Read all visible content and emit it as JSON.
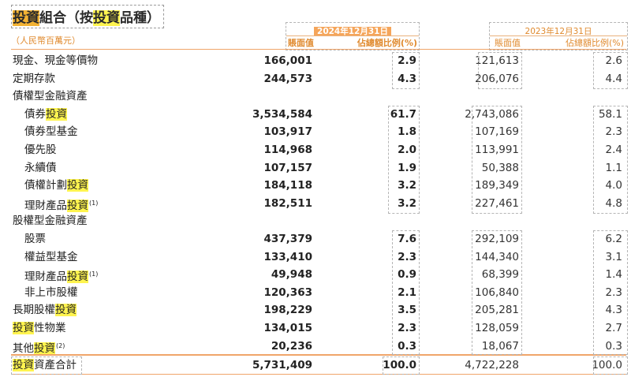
{
  "title": {
    "parts": [
      {
        "text": "投資",
        "style": "hl-orange"
      },
      {
        "text": "組合（按",
        "style": "plain"
      },
      {
        "text": "投資",
        "style": "hl"
      },
      {
        "text": "品種）",
        "style": "plain"
      }
    ]
  },
  "unit": "（人民幣百萬元）",
  "columns": {
    "y2024": {
      "date": "2024年12月31日",
      "value_header": "賬面值",
      "pct_header": "佔總額比例(%)"
    },
    "y2023": {
      "date": "2023年12月31日",
      "value_header": "賬面值",
      "pct_header": "佔總額比例(%)"
    }
  },
  "rows": [
    {
      "label": [
        {
          "text": "現金、現金等價物"
        }
      ],
      "indent": false,
      "v24": "166,001",
      "p24": "2.9",
      "v23": "121,613",
      "p23": "2.6"
    },
    {
      "label": [
        {
          "text": "定期存款"
        }
      ],
      "indent": false,
      "v24": "244,573",
      "p24": "4.3",
      "v23": "206,076",
      "p23": "4.4"
    },
    {
      "label": [
        {
          "text": "債權型金融資產"
        }
      ],
      "indent": false,
      "v24": "",
      "p24": "",
      "v23": "",
      "p23": ""
    },
    {
      "label": [
        {
          "text": "債券"
        },
        {
          "text": "投資",
          "hl": true
        }
      ],
      "indent": true,
      "v24": "3,534,584",
      "p24": "61.7",
      "v23": "2,743,086",
      "p23": "58.1"
    },
    {
      "label": [
        {
          "text": "債券型基金"
        }
      ],
      "indent": true,
      "v24": "103,917",
      "p24": "1.8",
      "v23": "107,169",
      "p23": "2.3"
    },
    {
      "label": [
        {
          "text": "優先股"
        }
      ],
      "indent": true,
      "v24": "114,968",
      "p24": "2.0",
      "v23": "113,991",
      "p23": "2.4"
    },
    {
      "label": [
        {
          "text": "永續債"
        }
      ],
      "indent": true,
      "v24": "107,157",
      "p24": "1.9",
      "v23": "50,388",
      "p23": "1.1"
    },
    {
      "label": [
        {
          "text": "債權計劃"
        },
        {
          "text": "投資",
          "hl": true
        }
      ],
      "indent": true,
      "v24": "184,118",
      "p24": "3.2",
      "v23": "189,349",
      "p23": "4.0"
    },
    {
      "label": [
        {
          "text": "理財產品"
        },
        {
          "text": "投資",
          "hl": true
        },
        {
          "text": "(1)",
          "sup": true
        }
      ],
      "indent": true,
      "v24": "182,511",
      "p24": "3.2",
      "v23": "227,461",
      "p23": "4.8"
    },
    {
      "label": [
        {
          "text": "股權型金融資產"
        }
      ],
      "indent": false,
      "v24": "",
      "p24": "",
      "v23": "",
      "p23": ""
    },
    {
      "label": [
        {
          "text": "股票"
        }
      ],
      "indent": true,
      "v24": "437,379",
      "p24": "7.6",
      "v23": "292,109",
      "p23": "6.2"
    },
    {
      "label": [
        {
          "text": "權益型基金"
        }
      ],
      "indent": true,
      "v24": "133,410",
      "p24": "2.3",
      "v23": "144,340",
      "p23": "3.1"
    },
    {
      "label": [
        {
          "text": "理財產品"
        },
        {
          "text": "投資",
          "hl": true
        },
        {
          "text": "(1)",
          "sup": true
        }
      ],
      "indent": true,
      "v24": "49,948",
      "p24": "0.9",
      "v23": "68,399",
      "p23": "1.4"
    },
    {
      "label": [
        {
          "text": "非上市股權"
        }
      ],
      "indent": true,
      "v24": "120,363",
      "p24": "2.1",
      "v23": "106,840",
      "p23": "2.3"
    },
    {
      "label": [
        {
          "text": "長期股權"
        },
        {
          "text": "投資",
          "hl": true
        }
      ],
      "indent": false,
      "v24": "198,229",
      "p24": "3.5",
      "v23": "205,281",
      "p23": "4.3"
    },
    {
      "label": [
        {
          "text": "投資",
          "hl": true
        },
        {
          "text": "性物業"
        }
      ],
      "indent": false,
      "v24": "134,015",
      "p24": "2.3",
      "v23": "128,059",
      "p23": "2.7"
    },
    {
      "label": [
        {
          "text": "其他"
        },
        {
          "text": "投資",
          "hl": true
        },
        {
          "text": "(2)",
          "sup": true
        }
      ],
      "indent": false,
      "v24": "20,236",
      "p24": "0.3",
      "v23": "18,067",
      "p23": "0.3"
    }
  ],
  "total": {
    "label": [
      {
        "text": "投資",
        "hl": true
      },
      {
        "text": "資產合計"
      }
    ],
    "v24": "5,731,409",
    "p24": "100.0",
    "v23": "4,722,228",
    "p23": "100.0"
  }
}
